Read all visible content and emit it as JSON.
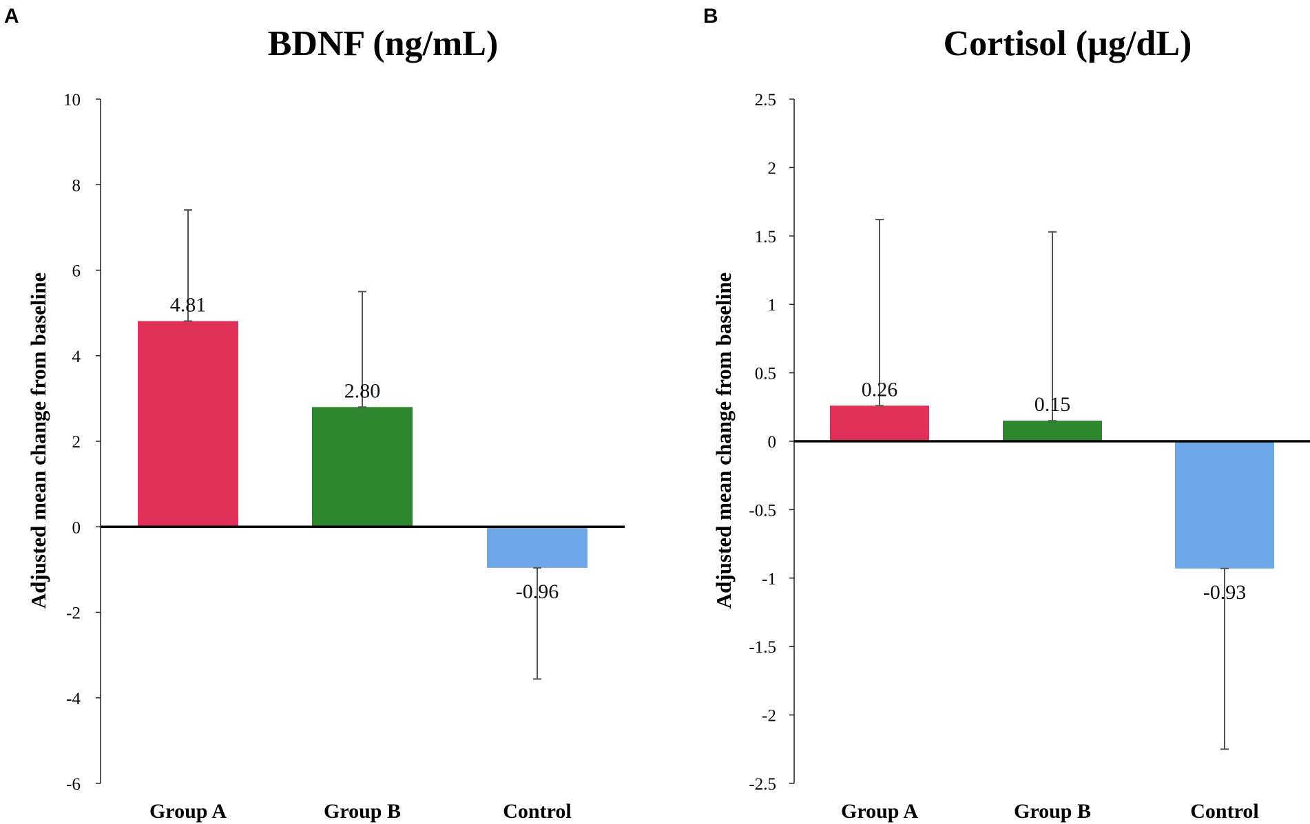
{
  "chart_data": [
    {
      "type": "bar",
      "panel": "A",
      "title": "BDNF (ng/mL)",
      "ylabel": "Adjusted mean change from baseline",
      "xlabel": "",
      "categories": [
        "Group A",
        "Group B",
        "Control"
      ],
      "values": [
        4.81,
        2.8,
        -0.96
      ],
      "value_labels": [
        "4.81",
        "2.80",
        "-0.96"
      ],
      "error_bars": [
        2.6,
        2.7,
        2.6
      ],
      "colors": [
        "#DE3058",
        "#2E872F",
        "#6EA8E8"
      ],
      "ylim": [
        -6,
        10
      ],
      "yticks": [
        10,
        8,
        6,
        4,
        2,
        0,
        -2,
        -4,
        -6
      ],
      "ytick_labels": [
        "10",
        "8",
        "6",
        "4",
        "2",
        "0",
        "-2",
        "-4",
        "-6"
      ],
      "grid": false,
      "legend": "none"
    },
    {
      "type": "bar",
      "panel": "B",
      "title": "Cortisol (µg/dL)",
      "ylabel": "Adjusted mean change from baseline",
      "xlabel": "",
      "categories": [
        "Group A",
        "Group B",
        "Control"
      ],
      "values": [
        0.26,
        0.15,
        -0.93
      ],
      "value_labels": [
        "0.26",
        "0.15",
        "-0.93"
      ],
      "error_bars": [
        1.36,
        1.38,
        1.32
      ],
      "colors": [
        "#DE3058",
        "#2E872F",
        "#6EA8E8"
      ],
      "ylim": [
        -2.5,
        2.5
      ],
      "yticks": [
        2.5,
        2,
        1.5,
        1,
        0.5,
        0,
        -0.5,
        -1,
        -1.5,
        -2,
        -2.5
      ],
      "ytick_labels": [
        "2.5",
        "2",
        "1.5",
        "1",
        "0.5",
        "0",
        "-0.5",
        "-1",
        "-1.5",
        "-2",
        "-2.5"
      ],
      "grid": false,
      "legend": "none"
    }
  ]
}
